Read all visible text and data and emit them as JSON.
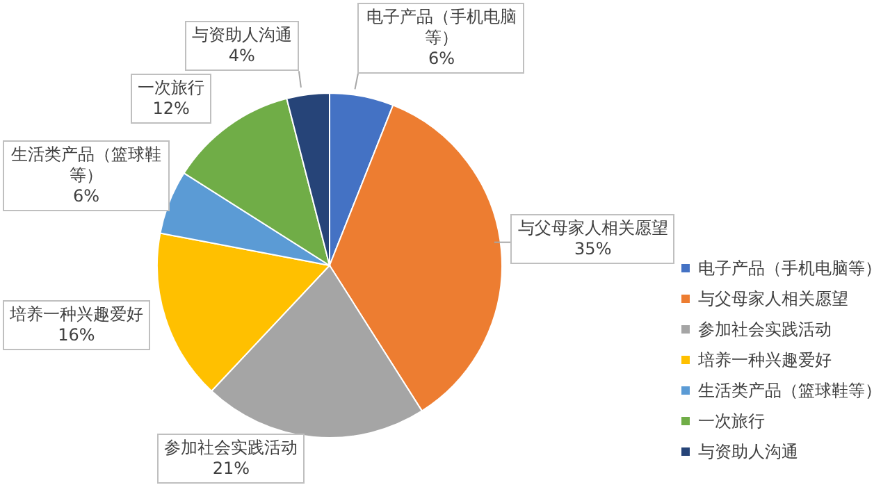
{
  "chart_data": {
    "type": "pie",
    "categories": [
      "电子产品（手机电脑等）",
      "与父母家人相关愿望",
      "参加社会实践活动",
      "培养一种兴趣爱好",
      "生活类产品（篮球鞋等）",
      "一次旅行",
      "与资助人沟通"
    ],
    "values": [
      6,
      35,
      21,
      16,
      6,
      12,
      4
    ],
    "value_labels": [
      "6%",
      "35%",
      "21%",
      "16%",
      "6%",
      "12%",
      "4%"
    ],
    "colors": [
      "#4472c4",
      "#ed7d31",
      "#a5a5a5",
      "#ffc000",
      "#5b9bd5",
      "#70ad47",
      "#264478"
    ],
    "legend": "right"
  }
}
